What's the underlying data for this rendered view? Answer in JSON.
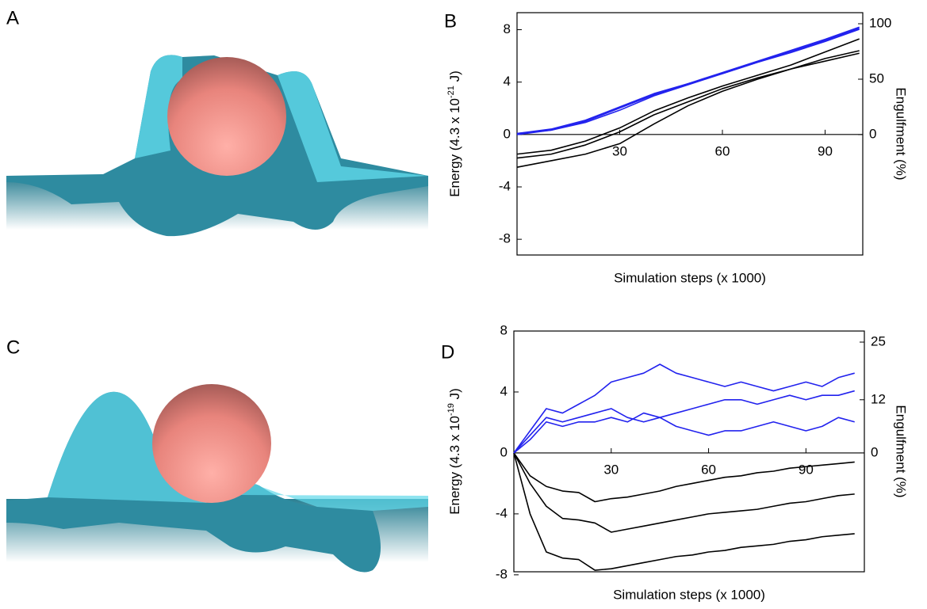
{
  "image_panels": [
    {
      "label": "A"
    },
    {
      "label": "C"
    }
  ],
  "chart_data": [
    {
      "type": "line",
      "panel_label": "B",
      "xlabel": "Simulation steps (x 1000)",
      "ylabel": [
        "Energy (4.3 x 10",
        "-21",
        " J)"
      ],
      "y2label": "Engulfment (%)",
      "xlim": [
        0,
        101
      ],
      "ylim": [
        -9.2,
        9.3
      ],
      "y2lim": [
        -108.6,
        110
      ],
      "xticks": [
        30,
        60,
        90
      ],
      "yticks": [
        8,
        4,
        0,
        -4,
        -8
      ],
      "y2ticks": [
        0,
        50,
        100
      ],
      "y2color": "#2222ee",
      "x": [
        0,
        10,
        20,
        30,
        40,
        50,
        60,
        70,
        80,
        90,
        100
      ],
      "series": [
        {
          "color": "#000000",
          "values": [
            -1.5,
            -1.2,
            -0.5,
            0.5,
            1.8,
            2.8,
            3.7,
            4.5,
            5.3,
            6.3,
            7.3
          ]
        },
        {
          "color": "#000000",
          "values": [
            -1.8,
            -1.5,
            -0.8,
            0.2,
            1.5,
            2.5,
            3.5,
            4.3,
            5,
            5.8,
            6.4
          ]
        },
        {
          "color": "#000000",
          "values": [
            -2.5,
            -2,
            -1.5,
            -0.7,
            0.8,
            2.2,
            3.3,
            4.2,
            5,
            5.6,
            6.2
          ]
        },
        {
          "color": "#2222ee",
          "axis": "y2",
          "values": [
            1,
            5,
            13,
            25,
            37,
            46,
            55,
            65,
            75,
            85,
            96
          ]
        },
        {
          "color": "#2222ee",
          "axis": "y2",
          "values": [
            0,
            4,
            12,
            24,
            36,
            46,
            56,
            66,
            76,
            86,
            97
          ]
        },
        {
          "color": "#2222ee",
          "axis": "y2",
          "values": [
            1,
            4,
            11,
            22,
            35,
            45,
            55,
            65,
            74,
            84,
            95
          ]
        }
      ]
    },
    {
      "type": "line",
      "panel_label": "D",
      "xlabel": "Simulation steps (x 1000)",
      "ylabel": [
        "Energy (4.3 x 10",
        "-19",
        " J)"
      ],
      "y2label": "Engulfment (%)",
      "xlim": [
        0,
        108
      ],
      "ylim": [
        -7.8,
        8
      ],
      "y2lim": [
        -26.8,
        27.5
      ],
      "xticks": [
        30,
        60,
        90
      ],
      "yticks": [
        8,
        4,
        0,
        -4,
        -8
      ],
      "y2ticks": [
        0,
        12,
        25
      ],
      "y2color": "#2222ee",
      "x": [
        0,
        5,
        10,
        15,
        20,
        25,
        30,
        35,
        40,
        45,
        50,
        55,
        60,
        65,
        70,
        75,
        80,
        85,
        90,
        95,
        100,
        105
      ],
      "series": [
        {
          "color": "#000000",
          "values": [
            0,
            -1.5,
            -2.2,
            -2.5,
            -2.6,
            -3.2,
            -3,
            -2.9,
            -2.7,
            -2.5,
            -2.2,
            -2,
            -1.8,
            -1.6,
            -1.5,
            -1.3,
            -1.2,
            -1,
            -0.9,
            -0.8,
            -0.7,
            -0.6
          ]
        },
        {
          "color": "#000000",
          "values": [
            0,
            -2,
            -3.5,
            -4.3,
            -4.4,
            -4.6,
            -5.2,
            -5,
            -4.8,
            -4.6,
            -4.4,
            -4.2,
            -4,
            -3.9,
            -3.8,
            -3.7,
            -3.5,
            -3.3,
            -3.2,
            -3,
            -2.8,
            -2.7
          ]
        },
        {
          "color": "#000000",
          "values": [
            0,
            -4,
            -6.5,
            -6.9,
            -7,
            -7.7,
            -7.6,
            -7.4,
            -7.2,
            -7,
            -6.8,
            -6.7,
            -6.5,
            -6.4,
            -6.2,
            -6.1,
            -6,
            -5.8,
            -5.7,
            -5.5,
            -5.4,
            -5.3
          ]
        },
        {
          "color": "#2222ee",
          "axis": "y2",
          "values": [
            0,
            5,
            10,
            9,
            11,
            13,
            16,
            17,
            18,
            20,
            18,
            17,
            16,
            15,
            16,
            15,
            14,
            15,
            16,
            15,
            17,
            18
          ]
        },
        {
          "color": "#2222ee",
          "axis": "y2",
          "values": [
            0,
            4,
            8,
            7,
            8,
            9,
            10,
            8,
            7,
            8,
            9,
            10,
            11,
            12,
            12,
            11,
            12,
            13,
            12,
            13,
            13,
            14
          ]
        },
        {
          "color": "#2222ee",
          "axis": "y2",
          "values": [
            0,
            3,
            7,
            6,
            7,
            7,
            8,
            7,
            9,
            8,
            6,
            5,
            4,
            5,
            5,
            6,
            7,
            6,
            5,
            6,
            8,
            7
          ]
        }
      ]
    }
  ]
}
